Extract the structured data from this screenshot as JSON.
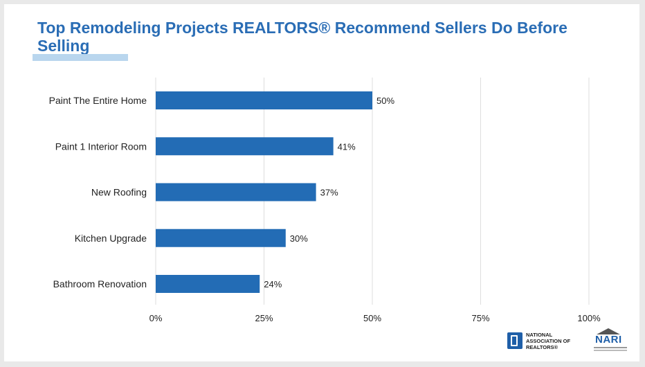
{
  "chart_data": {
    "type": "bar",
    "orientation": "horizontal",
    "title": "Top Remodeling Projects REALTORS® Recommend Sellers Do Before Selling",
    "categories": [
      "Paint The Entire Home",
      "Paint 1 Interior Room",
      "New Roofing",
      "Kitchen Upgrade",
      "Bathroom Renovation"
    ],
    "values": [
      50,
      41,
      37,
      30,
      24
    ],
    "value_labels": [
      "50%",
      "41%",
      "37%",
      "30%",
      "24%"
    ],
    "xlim": [
      0,
      100
    ],
    "x_ticks": [
      0,
      25,
      50,
      75,
      100
    ],
    "x_tick_labels": [
      "0%",
      "25%",
      "50%",
      "75%",
      "100%"
    ],
    "grid": "vertical",
    "bar_color": "#236cb5"
  },
  "colors": {
    "title": "#2a6db5",
    "accent_underline": "#b9d6ee",
    "gridline": "#dddddd"
  },
  "logos": {
    "nar_text": "NATIONAL\nASSOCIATION OF\nREALTORS®",
    "nari_text": "NARI"
  }
}
